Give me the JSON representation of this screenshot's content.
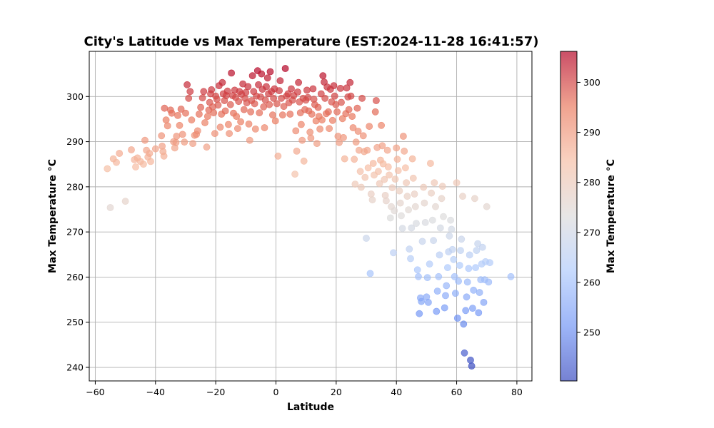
{
  "chart_data": {
    "type": "scatter",
    "title": "City's Latitude vs Max Temperature (EST:2024-11-28 16:41:57)",
    "xlabel": "Latitude",
    "ylabel": "Max Temperature °C",
    "xlim": [
      -62,
      85
    ],
    "ylim": [
      237,
      310
    ],
    "xticks": [
      -60,
      -40,
      -20,
      0,
      20,
      40,
      60,
      80
    ],
    "yticks": [
      240,
      250,
      260,
      270,
      280,
      290,
      300
    ],
    "grid": true,
    "legend": "none",
    "colorbar": {
      "label": "Max Temperature °C",
      "min": 240.3,
      "max": 306.2,
      "ticks": [
        250,
        260,
        270,
        280,
        290,
        300
      ],
      "colormap": "coolwarm",
      "colors": [
        "#3b4cc0",
        "#7396f5",
        "#b0cbfc",
        "#dddcdc",
        "#f6bfa6",
        "#ea7b60",
        "#b40426"
      ]
    },
    "marker_alpha": 0.7,
    "points": [
      [
        -56,
        284
      ],
      [
        -55,
        275.4
      ],
      [
        -54,
        286.2
      ],
      [
        -53,
        285.4
      ],
      [
        -52,
        287.4
      ],
      [
        -50,
        276.8
      ],
      [
        -48,
        288.2
      ],
      [
        -47,
        286
      ],
      [
        -46.6,
        284.4
      ],
      [
        -46,
        286.4
      ],
      [
        -45,
        285.6
      ],
      [
        -44,
        285
      ],
      [
        -43.5,
        290.3
      ],
      [
        -43,
        288.1
      ],
      [
        -42.5,
        286.6
      ],
      [
        -42,
        287.4
      ],
      [
        -41.6,
        285.6
      ],
      [
        -40,
        288.4
      ],
      [
        -38,
        291.3
      ],
      [
        -37.8,
        289
      ],
      [
        -37.5,
        287.8
      ],
      [
        -37.2,
        286.8
      ],
      [
        -37,
        297.4
      ],
      [
        -36.5,
        294.8
      ],
      [
        -36,
        293.5
      ],
      [
        -35,
        297
      ],
      [
        -34.6,
        296.3
      ],
      [
        -34,
        290
      ],
      [
        -33.6,
        288.6
      ],
      [
        -33.2,
        289.8
      ],
      [
        -33,
        291.2
      ],
      [
        -32.6,
        295.8
      ],
      [
        -32,
        293.6
      ],
      [
        -31.5,
        297.2
      ],
      [
        -31,
        291.6
      ],
      [
        -30.4,
        289.9
      ],
      [
        -30,
        296.3
      ],
      [
        -29.5,
        302.6
      ],
      [
        -29,
        299.6
      ],
      [
        -28.5,
        301.1
      ],
      [
        -28,
        294.8
      ],
      [
        -27.6,
        289.6
      ],
      [
        -27,
        291.4
      ],
      [
        -26.4,
        291.6
      ],
      [
        -26,
        292.4
      ],
      [
        -25.5,
        296.1
      ],
      [
        -25,
        297.6
      ],
      [
        -24.4,
        299.7
      ],
      [
        -24,
        301.1
      ],
      [
        -23.6,
        294.2
      ],
      [
        -23,
        288.8
      ],
      [
        -22.7,
        295.6
      ],
      [
        -22.3,
        297
      ],
      [
        -22,
        298.7
      ],
      [
        -21.7,
        300.6
      ],
      [
        -21.4,
        301.5
      ],
      [
        -21,
        297.7
      ],
      [
        -20.7,
        296.4
      ],
      [
        -20.3,
        291.8
      ],
      [
        -20,
        300.1
      ],
      [
        -19.6,
        299.4
      ],
      [
        -19.2,
        298.1
      ],
      [
        -18.9,
        302.4
      ],
      [
        -18.5,
        293.2
      ],
      [
        -18.1,
        296.1
      ],
      [
        -17.8,
        303.1
      ],
      [
        -17.5,
        300.6
      ],
      [
        -17.1,
        299.1
      ],
      [
        -16.8,
        296.8
      ],
      [
        -16.5,
        300.2
      ],
      [
        -16.1,
        301.2
      ],
      [
        -15.8,
        293.8
      ],
      [
        -15.5,
        291.8
      ],
      [
        -15.1,
        298.2
      ],
      [
        -14.8,
        305.2
      ],
      [
        -14.4,
        300.2
      ],
      [
        -14.1,
        296.3
      ],
      [
        -13.7,
        301.4
      ],
      [
        -13.4,
        299.8
      ],
      [
        -13.1,
        295.6
      ],
      [
        -12.7,
        292.9
      ],
      [
        -12.4,
        298.9
      ],
      [
        -12.1,
        301.1
      ],
      [
        -11.7,
        294.4
      ],
      [
        -11.4,
        300.5
      ],
      [
        -11,
        302.8
      ],
      [
        -10.6,
        297.1
      ],
      [
        -10.3,
        299.6
      ],
      [
        -10,
        300.9
      ],
      [
        -9.7,
        298.6
      ],
      [
        -9.3,
        302.2
      ],
      [
        -9,
        293.9
      ],
      [
        -8.7,
        290.3
      ],
      [
        -8.4,
        296.6
      ],
      [
        -8.1,
        299.1
      ],
      [
        -7.8,
        304.6
      ],
      [
        -7.4,
        301.1
      ],
      [
        -7.1,
        298.4
      ],
      [
        -6.8,
        292.8
      ],
      [
        -6.5,
        300.1
      ],
      [
        -6.1,
        305.7
      ],
      [
        -5.8,
        302.6
      ],
      [
        -5.5,
        296.4
      ],
      [
        -5.1,
        299.9
      ],
      [
        -4.8,
        305
      ],
      [
        -4.5,
        301.6
      ],
      [
        -4.1,
        297.7
      ],
      [
        -3.8,
        293.1
      ],
      [
        -3.5,
        299.2
      ],
      [
        -3.2,
        302.2
      ],
      [
        -2.8,
        304.1
      ],
      [
        -2.5,
        300.6
      ],
      [
        -2.2,
        298.2
      ],
      [
        -1.9,
        305.5
      ],
      [
        -1.5,
        301.1
      ],
      [
        -1.1,
        295.9
      ],
      [
        -0.8,
        299.6
      ],
      [
        -0.5,
        301.7
      ],
      [
        -0.2,
        294.6
      ],
      [
        0.3,
        298.4
      ],
      [
        0.7,
        286.8
      ],
      [
        1.1,
        301.3
      ],
      [
        1.4,
        303.5
      ],
      [
        1.8,
        299.6
      ],
      [
        2.2,
        295.9
      ],
      [
        2.6,
        297.8
      ],
      [
        3.1,
        306.2
      ],
      [
        3.5,
        300.1
      ],
      [
        4,
        300.6
      ],
      [
        4.3,
        298.6
      ],
      [
        4.7,
        296.1
      ],
      [
        5.1,
        301.7
      ],
      [
        5.5,
        299.2
      ],
      [
        5.9,
        300.2
      ],
      [
        6.3,
        282.8
      ],
      [
        6.6,
        292.4
      ],
      [
        6.9,
        287.9
      ],
      [
        7.2,
        301
      ],
      [
        7.5,
        303.1
      ],
      [
        7.8,
        298.8
      ],
      [
        8.1,
        296.4
      ],
      [
        8.4,
        293.8
      ],
      [
        8.7,
        290.3
      ],
      [
        9,
        299.6
      ],
      [
        9.3,
        285.7
      ],
      [
        9.6,
        297.1
      ],
      [
        9.9,
        299.2
      ],
      [
        10.3,
        301.4
      ],
      [
        10.6,
        299.8
      ],
      [
        10.9,
        296.8
      ],
      [
        11.3,
        292.1
      ],
      [
        11.6,
        290.8
      ],
      [
        11.9,
        296.1
      ],
      [
        12.3,
        301.7
      ],
      [
        12.6,
        299.4
      ],
      [
        12.9,
        298.2
      ],
      [
        13.3,
        294.6
      ],
      [
        13.6,
        289.6
      ],
      [
        14,
        297.6
      ],
      [
        14.3,
        295.6
      ],
      [
        14.6,
        292.8
      ],
      [
        15,
        300.6
      ],
      [
        15.3,
        294.8
      ],
      [
        15.6,
        304.6
      ],
      [
        16,
        303.2
      ],
      [
        16.3,
        299.6
      ],
      [
        16.7,
        296.2
      ],
      [
        17,
        302.1
      ],
      [
        17.4,
        296.6
      ],
      [
        17.7,
        292.9
      ],
      [
        18.1,
        301.6
      ],
      [
        18.5,
        298.8
      ],
      [
        18.8,
        294.7
      ],
      [
        19.2,
        302.4
      ],
      [
        19.5,
        300.1
      ],
      [
        19.9,
        298.2
      ],
      [
        20.3,
        296.6
      ],
      [
        20.6,
        291.2
      ],
      [
        21,
        289.8
      ],
      [
        21.4,
        301.8
      ],
      [
        21.7,
        298.7
      ],
      [
        22.1,
        295.1
      ],
      [
        22.4,
        290.9
      ],
      [
        22.8,
        286.2
      ],
      [
        23.2,
        296.2
      ],
      [
        23.5,
        301.9
      ],
      [
        23.9,
        299.9
      ],
      [
        24.2,
        297.1
      ],
      [
        24.6,
        303.1
      ],
      [
        24.9,
        300.1
      ],
      [
        25.3,
        295.6
      ],
      [
        25.6,
        293.1
      ],
      [
        26,
        286.1
      ],
      [
        26.3,
        280.6
      ],
      [
        26.6,
        289.9
      ],
      [
        27,
        297.4
      ],
      [
        27.3,
        292.3
      ],
      [
        27.6,
        288.1
      ],
      [
        28,
        283.4
      ],
      [
        28.3,
        279.9
      ],
      [
        28.6,
        299.6
      ],
      [
        29,
        291.3
      ],
      [
        29.3,
        287.8
      ],
      [
        29.6,
        282.1
      ],
      [
        30,
        268.6
      ],
      [
        30.3,
        288.1
      ],
      [
        30.6,
        284.2
      ],
      [
        31,
        293.4
      ],
      [
        31.3,
        260.8
      ],
      [
        31.6,
        278.4
      ],
      [
        32,
        277.1
      ],
      [
        32.3,
        285.2
      ],
      [
        32.6,
        282.6
      ],
      [
        33,
        296.6
      ],
      [
        33.3,
        299.1
      ],
      [
        33.6,
        288.7
      ],
      [
        34,
        283.4
      ],
      [
        34.4,
        280.7
      ],
      [
        34.7,
        285.9
      ],
      [
        35,
        293.6
      ],
      [
        35.3,
        289.1
      ],
      [
        35.6,
        285.1
      ],
      [
        36,
        281.6
      ],
      [
        36.3,
        278.1
      ],
      [
        36.6,
        276.9
      ],
      [
        37,
        288.1
      ],
      [
        37.3,
        284.4
      ],
      [
        37.6,
        282.6
      ],
      [
        38,
        273.1
      ],
      [
        38.3,
        275.6
      ],
      [
        38.6,
        279.8
      ],
      [
        39,
        265.4
      ],
      [
        39.3,
        274.7
      ],
      [
        39.6,
        281.7
      ],
      [
        40,
        288.6
      ],
      [
        40.3,
        286.1
      ],
      [
        40.6,
        283.6
      ],
      [
        41,
        279.1
      ],
      [
        41.3,
        276.4
      ],
      [
        41.6,
        273.6
      ],
      [
        42,
        270.8
      ],
      [
        42.3,
        291.2
      ],
      [
        42.6,
        287.9
      ],
      [
        43,
        284.2
      ],
      [
        43.3,
        280.9
      ],
      [
        43.6,
        277.9
      ],
      [
        44,
        274.9
      ],
      [
        44.3,
        266.2
      ],
      [
        44.7,
        264.1
      ],
      [
        45,
        270.9
      ],
      [
        45.3,
        286.2
      ],
      [
        45.6,
        281.9
      ],
      [
        46,
        278.4
      ],
      [
        46.3,
        275.6
      ],
      [
        46.6,
        271.9
      ],
      [
        47,
        261.6
      ],
      [
        47.3,
        260.1
      ],
      [
        47.6,
        251.9
      ],
      [
        48,
        255.4
      ],
      [
        48.3,
        254.6
      ],
      [
        48.6,
        267.9
      ],
      [
        49,
        279.9
      ],
      [
        49.3,
        276.4
      ],
      [
        49.6,
        272.1
      ],
      [
        50,
        255.6
      ],
      [
        50.3,
        259.9
      ],
      [
        50.6,
        254.4
      ],
      [
        51,
        262.9
      ],
      [
        51.3,
        285.2
      ],
      [
        51.6,
        278.6
      ],
      [
        52,
        272.6
      ],
      [
        52.3,
        268.1
      ],
      [
        52.6,
        280.9
      ],
      [
        53,
        275.6
      ],
      [
        53.3,
        252.4
      ],
      [
        53.6,
        256.9
      ],
      [
        54,
        260.1
      ],
      [
        54.3,
        264.9
      ],
      [
        54.6,
        270.9
      ],
      [
        55,
        277.4
      ],
      [
        55.3,
        280.1
      ],
      [
        55.6,
        273.4
      ],
      [
        56,
        253.2
      ],
      [
        56.3,
        255.9
      ],
      [
        56.6,
        258.1
      ],
      [
        57,
        262.1
      ],
      [
        57.3,
        265.6
      ],
      [
        57.6,
        269.1
      ],
      [
        58,
        272.6
      ],
      [
        58.3,
        270.6
      ],
      [
        58.6,
        266.1
      ],
      [
        59,
        263.9
      ],
      [
        59.3,
        260.1
      ],
      [
        59.6,
        256.4
      ],
      [
        60,
        280.9
      ],
      [
        60.3,
        250.9
      ],
      [
        60.6,
        259.1
      ],
      [
        61,
        262.6
      ],
      [
        61.3,
        265.9
      ],
      [
        61.6,
        268.4
      ],
      [
        62,
        277.9
      ],
      [
        62.3,
        249.6
      ],
      [
        62.6,
        243.2
      ],
      [
        63,
        252.6
      ],
      [
        63.3,
        255.6
      ],
      [
        63.6,
        258.9
      ],
      [
        64,
        261.9
      ],
      [
        64.3,
        264.9
      ],
      [
        64.6,
        241.6
      ],
      [
        65,
        240.3
      ],
      [
        65.3,
        253.1
      ],
      [
        65.6,
        257.1
      ],
      [
        66,
        277.4
      ],
      [
        66.3,
        262.1
      ],
      [
        66.6,
        265.9
      ],
      [
        67,
        267.4
      ],
      [
        67.3,
        252.1
      ],
      [
        67.6,
        256.6
      ],
      [
        68,
        259.4
      ],
      [
        68.3,
        262.9
      ],
      [
        68.6,
        266.6
      ],
      [
        69,
        254.4
      ],
      [
        69.3,
        259.4
      ],
      [
        69.6,
        263.4
      ],
      [
        70,
        275.6
      ],
      [
        70.6,
        258.9
      ],
      [
        71,
        263.2
      ],
      [
        78,
        260.1
      ]
    ]
  }
}
